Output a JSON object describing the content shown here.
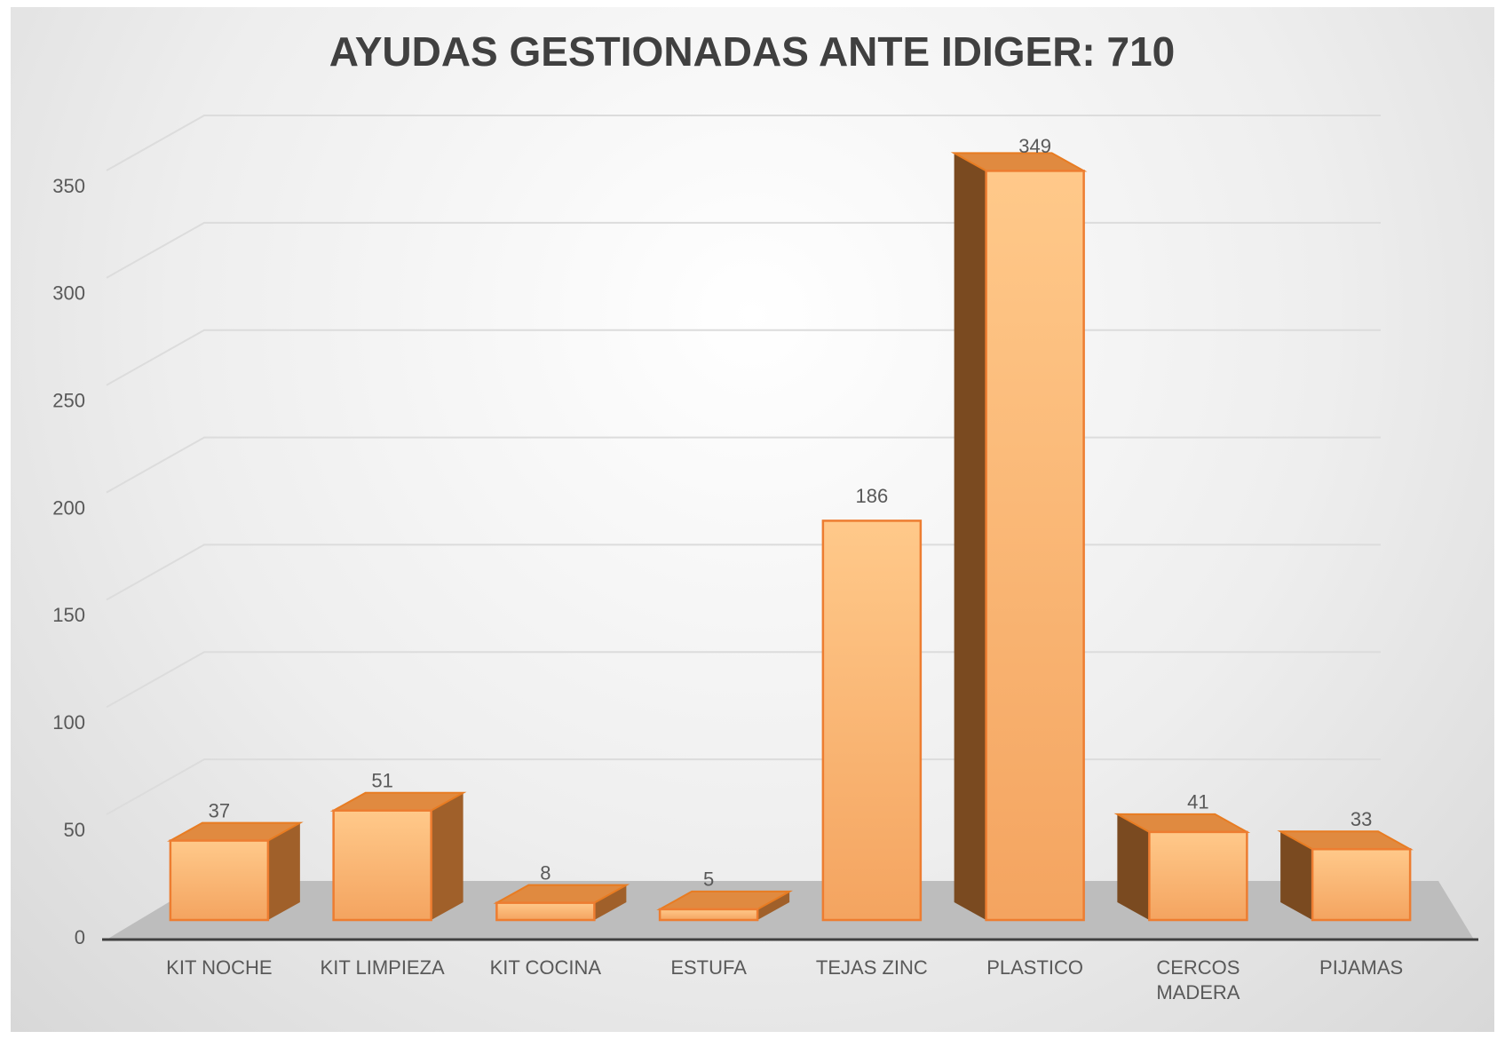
{
  "chart_data": {
    "type": "bar",
    "title": "AYUDAS GESTIONADAS ANTE IDIGER: 710",
    "categories": [
      "KIT NOCHE",
      "KIT LIMPIEZA",
      "KIT COCINA",
      "ESTUFA",
      "TEJAS ZINC",
      "PLASTICO",
      "CERCOS MADERA",
      "PIJAMAS"
    ],
    "values": [
      37,
      51,
      8,
      5,
      186,
      349,
      41,
      33
    ],
    "color": "#f4a460",
    "ylim": [
      0,
      350
    ],
    "yticks": [
      0,
      50,
      100,
      150,
      200,
      250,
      300,
      350
    ],
    "grid": true
  }
}
